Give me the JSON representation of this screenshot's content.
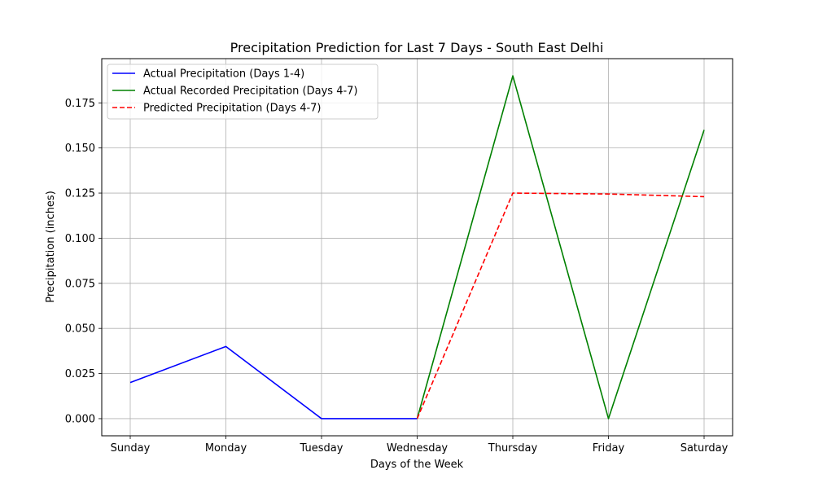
{
  "chart_data": {
    "type": "line",
    "title": "Precipitation Prediction for Last 7 Days - South East Delhi",
    "xlabel": "Days of the Week",
    "ylabel": "Precipitation (inches)",
    "categories": [
      "Sunday",
      "Monday",
      "Tuesday",
      "Wednesday",
      "Thursday",
      "Friday",
      "Saturday"
    ],
    "ylim": [
      -0.0095,
      0.1995
    ],
    "yticks": [
      "0.000",
      "0.025",
      "0.050",
      "0.075",
      "0.100",
      "0.125",
      "0.150",
      "0.175"
    ],
    "ytick_values": [
      0.0,
      0.025,
      0.05,
      0.075,
      0.1,
      0.125,
      0.15,
      0.175
    ],
    "grid": true,
    "legend_position": "top-left",
    "series": [
      {
        "name": "Actual Precipitation (Days 1-4)",
        "color": "#0000ff",
        "style": "solid",
        "x": [
          0,
          1,
          2,
          3
        ],
        "values": [
          0.02,
          0.04,
          0.0,
          0.0
        ]
      },
      {
        "name": "Actual Recorded Precipitation (Days 4-7)",
        "color": "#008000",
        "style": "solid",
        "x": [
          3,
          4,
          5,
          6
        ],
        "values": [
          0.0,
          0.19,
          0.0,
          0.16
        ]
      },
      {
        "name": "Predicted Precipitation (Days 4-7)",
        "color": "#ff0000",
        "style": "dashed",
        "x": [
          3,
          4,
          5,
          6
        ],
        "values": [
          0.0,
          0.125,
          0.1245,
          0.123
        ]
      }
    ]
  }
}
